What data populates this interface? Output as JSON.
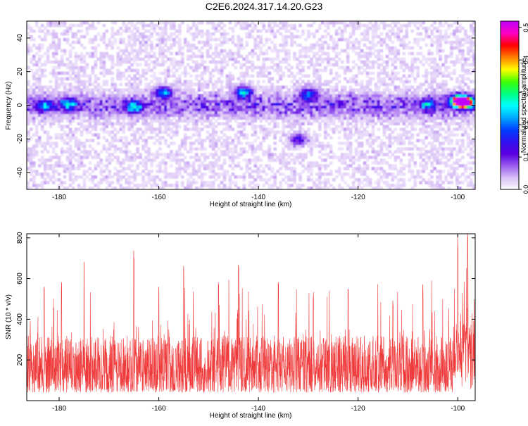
{
  "title": "C2E6.2024.317.14.20.G23",
  "colors": {
    "colormap": [
      "#ffffff",
      "#d8bff5",
      "#9a5cf0",
      "#5a00e0",
      "#3010f0",
      "#0040ff",
      "#00aaff",
      "#00ffff",
      "#00ff80",
      "#40ff00",
      "#ffff00",
      "#ff8000",
      "#ff0000",
      "#ff00c0",
      "#c000ff"
    ],
    "snr_line": "#ef3b3b"
  },
  "chart_data": [
    {
      "type": "heatmap",
      "title": "C2E6.2024.317.14.20.G23",
      "xlabel": "Height of straight line (km)",
      "ylabel": "Frequency (Hz)",
      "xlim": [
        -186.5,
        -96.5
      ],
      "ylim": [
        -50,
        50
      ],
      "xticks": [
        -180,
        -160,
        -140,
        -120,
        -100
      ],
      "yticks": [
        -40,
        -20,
        0,
        20,
        40
      ],
      "colorbar": {
        "label": "Normalized spectral amplitude",
        "range": [
          0.0,
          0.52
        ],
        "ticks": [
          "0.0",
          "0.1",
          "0.2",
          "0.3",
          "0.4",
          "0.5"
        ],
        "tick_values": [
          0.0,
          0.1,
          0.2,
          0.3,
          0.4,
          0.5
        ]
      },
      "features": [
        {
          "label": "signal band",
          "freq": 0,
          "height_range": [
            -186.5,
            -96.5
          ]
        },
        {
          "height": -183,
          "freq": 0,
          "amp": 0.18
        },
        {
          "height": -178,
          "freq": 1,
          "amp": 0.22
        },
        {
          "height": -165,
          "freq": -1,
          "amp": 0.25
        },
        {
          "height": -159,
          "freq": 8,
          "amp": 0.24
        },
        {
          "height": -143,
          "freq": 8,
          "amp": 0.26
        },
        {
          "height": -132,
          "freq": -20,
          "amp": 0.14
        },
        {
          "height": -130,
          "freq": 7,
          "amp": 0.2
        },
        {
          "height": -106,
          "freq": 1,
          "amp": 0.18
        },
        {
          "height": -100,
          "freq": 3,
          "amp": 0.3
        },
        {
          "height": -99.5,
          "freq": 2,
          "amp": 0.45
        },
        {
          "height": -98,
          "freq": 2,
          "amp": 0.42
        }
      ]
    },
    {
      "type": "line",
      "xlabel": "Height of straight line (km)",
      "ylabel": "SNR (10 * v/v)",
      "xlim": [
        -186.5,
        -96.5
      ],
      "ylim": [
        0,
        820
      ],
      "xticks": [
        -180,
        -160,
        -140,
        -120,
        -100
      ],
      "yticks": [
        200,
        400,
        600,
        800
      ],
      "series": [
        {
          "baseline_range": [
            40,
            320
          ],
          "peaks": [
            {
              "x": -183,
              "y": 560
            },
            {
              "x": -179.5,
              "y": 600
            },
            {
              "x": -175,
              "y": 720
            },
            {
              "x": -165,
              "y": 740
            },
            {
              "x": -160,
              "y": 580
            },
            {
              "x": -155,
              "y": 680
            },
            {
              "x": -148,
              "y": 600
            },
            {
              "x": -144,
              "y": 680
            },
            {
              "x": -136,
              "y": 600
            },
            {
              "x": -129,
              "y": 540
            },
            {
              "x": -122,
              "y": 560
            },
            {
              "x": -113,
              "y": 500
            },
            {
              "x": -107,
              "y": 580
            },
            {
              "x": -100,
              "y": 760
            },
            {
              "x": -98,
              "y": 820
            }
          ]
        }
      ]
    }
  ]
}
